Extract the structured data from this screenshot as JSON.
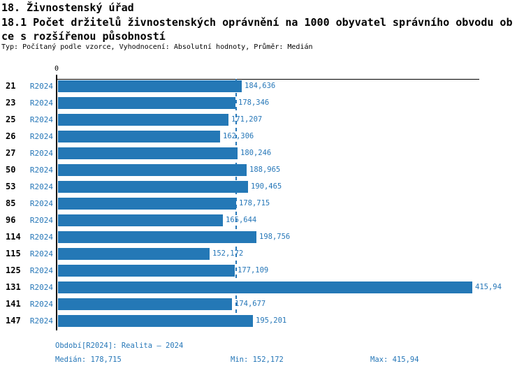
{
  "header": {
    "title": "18. Živnostenský úřad",
    "subtitle_line1": "18.1 Počet držitelů živnostenských oprávnění na 1000 obyvatel správního obvodu ob",
    "subtitle_line2": "ce s rozšířenou působností",
    "meta": "Typ: Počítaný podle vzorce, Vyhodnocení: Absolutní hodnoty, Průměr: Medián"
  },
  "axis": {
    "zero_label": "0"
  },
  "chart_data": {
    "type": "bar",
    "orientation": "horizontal",
    "title": "Počet držitelů živnostenských oprávnění na 1000 obyvatel správního obvodu obce s rozšířenou působností",
    "categories": [
      "21",
      "23",
      "25",
      "26",
      "27",
      "50",
      "53",
      "85",
      "96",
      "114",
      "115",
      "125",
      "131",
      "141",
      "147"
    ],
    "series": [
      {
        "name": "R2024",
        "values": [
          184.636,
          178.346,
          171.207,
          162.306,
          180.246,
          188.965,
          190.465,
          178.715,
          165.644,
          198.756,
          152.172,
          177.109,
          415.94,
          174.677,
          195.201
        ],
        "value_labels": [
          "184,636",
          "178,346",
          "171,207",
          "162,306",
          "180,246",
          "188,965",
          "190,465",
          "178,715",
          "165,644",
          "198,756",
          "152,172",
          "177,109",
          "415,94",
          "174,677",
          "195,201"
        ]
      }
    ],
    "median": 178.715,
    "min": 152.172,
    "max": 415.94,
    "xlim": [
      0,
      424
    ],
    "grid": false,
    "median_reference_line": true
  },
  "footer": {
    "period_label": "Období[R2024]: Realita – 2024",
    "median_label": "Medián: 178,715",
    "min_label": "Min: 152,172",
    "max_label": "Max: 415,94"
  },
  "colors": {
    "bar": "#2478b6",
    "accent_text": "#2677b8",
    "axis": "#000000",
    "background": "#ffffff"
  }
}
